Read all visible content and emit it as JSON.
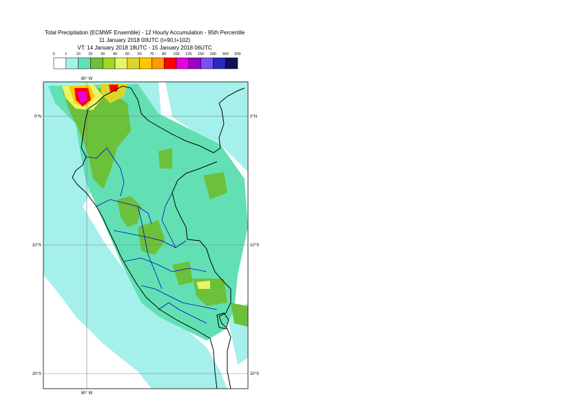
{
  "title": {
    "line1": "Total Precipitation (ECMWF Ensemble) - 12 Hourly Accumulation - 95th Percentile",
    "line2": "11 January 2018 00UTC (t+90,t+102)",
    "line3": "VT: 14 January 2018 18UTC - 15 January 2018 06UTC"
  },
  "legend": {
    "thresholds": [
      "0",
      "1",
      "10",
      "20",
      "30",
      "40",
      "50",
      "60",
      "70",
      "80",
      "100",
      "125",
      "150",
      "200",
      "300",
      "500"
    ],
    "colors": [
      "#ffffff",
      "#a6f0ec",
      "#62e0b4",
      "#6cc13a",
      "#a0d628",
      "#e8f568",
      "#ded52a",
      "#ffc800",
      "#ff9a00",
      "#ff0000",
      "#e800e0",
      "#9a00c8",
      "#7a50f0",
      "#2a2ab8",
      "#10105a"
    ]
  },
  "axes": {
    "lon_top": "80° W",
    "lon_bottom": "80° W",
    "lat_left": [
      "0°N",
      "10°S",
      "20°S"
    ],
    "lat_right": [
      "0°N",
      "10°S",
      "20°S"
    ]
  }
}
